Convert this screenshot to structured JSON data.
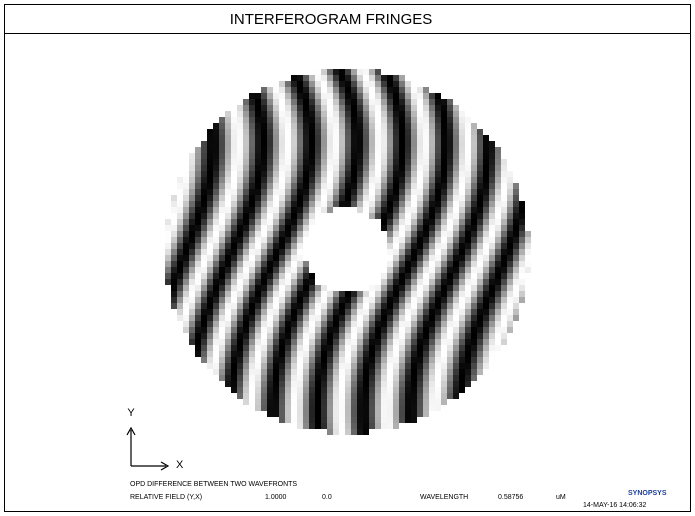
{
  "header": {
    "title": "INTERFEROGRAM FRINGES"
  },
  "axes": {
    "y": "Y",
    "x": "X"
  },
  "footer": {
    "description": "OPD DIFFERENCE BETWEEN TWO WAVEFRONTS",
    "field_label": "RELATIVE FIELD (Y,X)",
    "field_y": "1.0000",
    "field_x": "0.0",
    "wavelength_label": "WAVELENGTH",
    "wavelength": "0.58756",
    "wavelength_unit": "uM",
    "brand": "SYNOPSYS",
    "timestamp": "14-MAY-16 14:06:32"
  }
}
